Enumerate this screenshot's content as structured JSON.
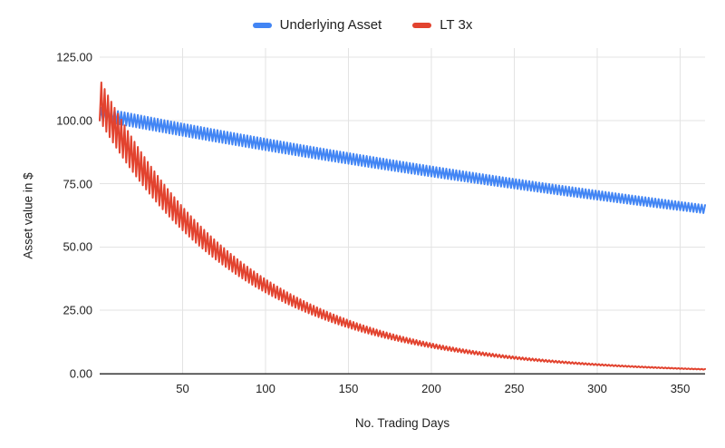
{
  "legend": {
    "items": [
      {
        "label": "Underlying Asset",
        "color": "#4285f4"
      },
      {
        "label": "LT 3x",
        "color": "#e2432f"
      }
    ]
  },
  "y_axis": {
    "title": "Asset value in $",
    "tick_labels": [
      "0.00",
      "25.00",
      "50.00",
      "75.00",
      "100.00",
      "125.00"
    ],
    "tick_values": [
      0,
      25,
      50,
      75,
      100,
      125
    ]
  },
  "x_axis": {
    "title": "No. Trading Days",
    "tick_labels": [
      "50",
      "100",
      "150",
      "200",
      "250",
      "300",
      "350"
    ],
    "tick_values": [
      50,
      100,
      150,
      200,
      250,
      300,
      350
    ]
  },
  "chart_data": {
    "type": "line",
    "title": "",
    "xlabel": "No. Trading Days",
    "ylabel": "Asset value in $",
    "xlim": [
      0,
      365
    ],
    "ylim": [
      0,
      125
    ],
    "grid": true,
    "gridline_color": "#e3e3e3",
    "axis_line_color": "#333333",
    "legend_position": "top-center",
    "line_style": "daily alternating up/down zigzag, 2-day period",
    "series": [
      {
        "name": "Underlying Asset",
        "color": "#4285f4",
        "simulation": {
          "start": 100,
          "alternating_daily_returns": [
            0.05,
            -0.05
          ],
          "days": 365
        },
        "approx_values_by_day": {
          "0": 100,
          "1": 105,
          "100": 88.2,
          "200": 77.9,
          "300": 68.7,
          "365": 66.6
        }
      },
      {
        "name": "LT 3x",
        "color": "#e2432f",
        "simulation": {
          "start": 100,
          "alternating_daily_returns": [
            0.15,
            -0.15
          ],
          "days": 365
        },
        "approx_values_by_day": {
          "0": 100,
          "1": 115,
          "100": 32.1,
          "200": 10.3,
          "300": 3.3,
          "365": 1.8
        }
      }
    ]
  }
}
